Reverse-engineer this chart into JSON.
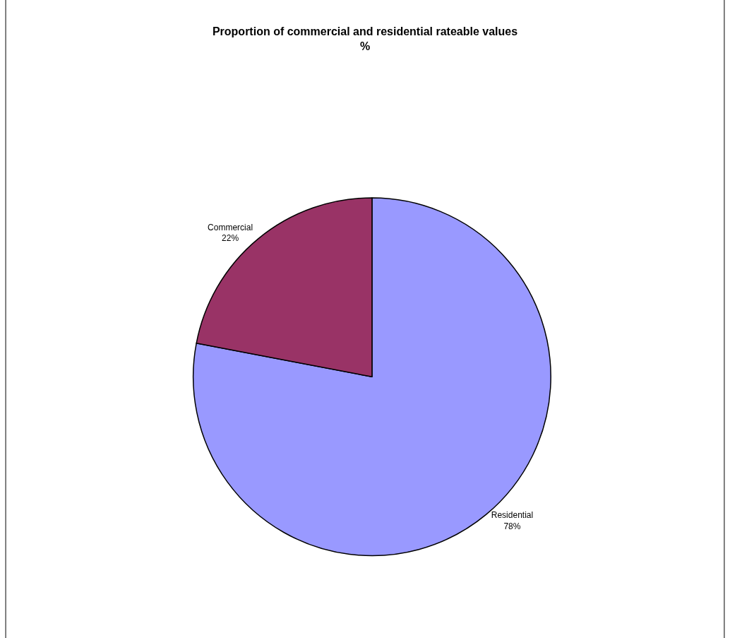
{
  "chart_data": {
    "type": "pie",
    "title": "Proportion of commercial and residential rateable values\n%",
    "categories": [
      "Residential",
      "Commercial"
    ],
    "values": [
      78,
      22
    ],
    "value_labels": [
      "78%",
      "22%"
    ],
    "colors": [
      "#9999ff",
      "#993366"
    ],
    "legend": false
  }
}
